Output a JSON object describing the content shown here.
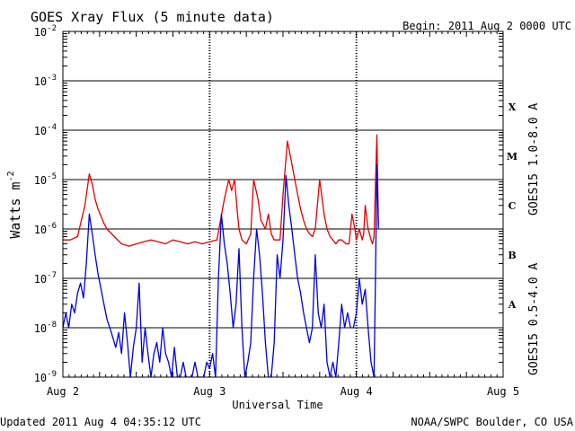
{
  "header": {
    "title": "GOES Xray Flux (5 minute data)",
    "begin": "Begin:  2011 Aug 2 0000 UTC"
  },
  "footer": {
    "updated": "Updated 2011 Aug  4 04:35:12 UTC",
    "source": "NOAA/SWPC Boulder, CO USA"
  },
  "chart_data": {
    "type": "line",
    "title": "GOES Xray Flux (5 minute data)",
    "xlabel": "Universal Time",
    "ylabel": "Watts m",
    "ylabel_exponent": "-2",
    "y_scale": "log",
    "ylim": [
      1e-09,
      0.01
    ],
    "xlim": [
      0,
      3
    ],
    "x_unit": "days since 2011 Aug 2 0000 UTC",
    "x_ticks": [
      {
        "value": 0,
        "label": "Aug 2"
      },
      {
        "value": 1,
        "label": "Aug 3"
      },
      {
        "value": 2,
        "label": "Aug 4"
      },
      {
        "value": 3,
        "label": "Aug 5"
      }
    ],
    "y_ticks": [
      {
        "value": 0.01,
        "label": "10",
        "exp": "-2"
      },
      {
        "value": 0.001,
        "label": "10",
        "exp": "-3"
      },
      {
        "value": 0.0001,
        "label": "10",
        "exp": "-4"
      },
      {
        "value": 1e-05,
        "label": "10",
        "exp": "-5"
      },
      {
        "value": 1e-06,
        "label": "10",
        "exp": "-6"
      },
      {
        "value": 1e-07,
        "label": "10",
        "exp": "-7"
      },
      {
        "value": 1e-08,
        "label": "10",
        "exp": "-8"
      },
      {
        "value": 1e-09,
        "label": "10",
        "exp": "-9"
      }
    ],
    "flare_classes": [
      {
        "label": "X",
        "value": 0.0003
      },
      {
        "label": "M",
        "value": 3e-05
      },
      {
        "label": "C",
        "value": 3e-06
      },
      {
        "label": "B",
        "value": 3e-07
      },
      {
        "label": "A",
        "value": 3e-08
      }
    ],
    "grid": true,
    "series": [
      {
        "name": "GOES15 1.0-8.0 A",
        "color": "#e00000",
        "x": [
          0.0,
          0.05,
          0.1,
          0.15,
          0.18,
          0.2,
          0.22,
          0.24,
          0.26,
          0.28,
          0.3,
          0.35,
          0.4,
          0.45,
          0.5,
          0.55,
          0.6,
          0.65,
          0.7,
          0.75,
          0.8,
          0.85,
          0.9,
          0.95,
          1.0,
          1.05,
          1.1,
          1.13,
          1.15,
          1.17,
          1.19,
          1.2,
          1.22,
          1.25,
          1.28,
          1.3,
          1.33,
          1.35,
          1.38,
          1.4,
          1.42,
          1.44,
          1.46,
          1.48,
          1.5,
          1.53,
          1.55,
          1.58,
          1.6,
          1.62,
          1.64,
          1.66,
          1.68,
          1.7,
          1.72,
          1.75,
          1.78,
          1.8,
          1.82,
          1.84,
          1.86,
          1.88,
          1.9,
          1.93,
          1.95,
          1.97,
          1.99,
          2.0,
          2.02,
          2.04,
          2.05,
          2.06,
          2.08,
          2.1,
          2.11,
          2.12,
          2.13,
          2.14,
          2.15
        ],
        "y": [
          6e-07,
          6e-07,
          7e-07,
          3e-06,
          1.3e-05,
          8e-06,
          4e-06,
          2.5e-06,
          1.8e-06,
          1.3e-06,
          1e-06,
          7e-07,
          5e-07,
          4.5e-07,
          5e-07,
          5.5e-07,
          6e-07,
          5.5e-07,
          5e-07,
          6e-07,
          5.5e-07,
          5e-07,
          5.5e-07,
          5e-07,
          5.5e-07,
          6e-07,
          4e-06,
          1e-05,
          6e-06,
          1e-05,
          2e-06,
          1e-06,
          6e-07,
          5e-07,
          8e-07,
          1e-05,
          4e-06,
          1.5e-06,
          1e-06,
          2e-06,
          8e-07,
          6e-07,
          6e-07,
          6e-07,
          5e-06,
          6e-05,
          3e-05,
          1e-05,
          5e-06,
          2.5e-06,
          1.5e-06,
          1e-06,
          8e-07,
          7e-07,
          1e-06,
          1e-05,
          2e-06,
          1e-06,
          7e-07,
          6e-07,
          5e-07,
          6e-07,
          6e-07,
          5e-07,
          5e-07,
          2e-06,
          1e-06,
          6e-07,
          1e-06,
          6e-07,
          8e-07,
          3e-06,
          1e-06,
          6e-07,
          5e-07,
          7e-07,
          8e-06,
          8e-05,
          1.2e-06
        ]
      },
      {
        "name": "GOES15 0.5-4.0 A",
        "color": "#0000e0",
        "x": [
          0.0,
          0.02,
          0.04,
          0.06,
          0.08,
          0.1,
          0.12,
          0.14,
          0.16,
          0.18,
          0.2,
          0.22,
          0.24,
          0.26,
          0.28,
          0.3,
          0.33,
          0.36,
          0.38,
          0.4,
          0.42,
          0.44,
          0.46,
          0.48,
          0.5,
          0.52,
          0.54,
          0.56,
          0.58,
          0.6,
          0.62,
          0.64,
          0.66,
          0.68,
          0.7,
          0.72,
          0.74,
          0.76,
          0.78,
          0.8,
          0.82,
          0.84,
          0.86,
          0.88,
          0.9,
          0.92,
          0.94,
          0.96,
          0.98,
          1.0,
          1.02,
          1.04,
          1.06,
          1.08,
          1.1,
          1.12,
          1.14,
          1.16,
          1.18,
          1.2,
          1.22,
          1.24,
          1.26,
          1.28,
          1.3,
          1.32,
          1.34,
          1.36,
          1.38,
          1.4,
          1.42,
          1.44,
          1.46,
          1.48,
          1.5,
          1.52,
          1.54,
          1.56,
          1.58,
          1.6,
          1.62,
          1.64,
          1.66,
          1.68,
          1.7,
          1.72,
          1.74,
          1.76,
          1.78,
          1.8,
          1.82,
          1.84,
          1.86,
          1.88,
          1.9,
          1.92,
          1.94,
          1.96,
          1.98,
          2.0,
          2.02,
          2.04,
          2.06,
          2.08,
          2.1,
          2.12,
          2.13,
          2.14,
          2.15
        ],
        "y": [
          1e-08,
          2e-08,
          1e-08,
          3e-08,
          2e-08,
          5e-08,
          8e-08,
          4e-08,
          2e-07,
          2e-06,
          8e-07,
          3e-07,
          1.2e-07,
          6e-08,
          3e-08,
          1.5e-08,
          8e-09,
          4e-09,
          8e-09,
          3e-09,
          2e-08,
          5e-09,
          1e-09,
          4e-09,
          1e-08,
          8e-08,
          2e-09,
          1e-08,
          3e-09,
          1e-09,
          3e-09,
          5e-09,
          2e-09,
          1e-08,
          3e-09,
          2e-09,
          1e-09,
          4e-09,
          1e-09,
          1e-09,
          2e-09,
          1e-09,
          1e-09,
          1e-09,
          2e-09,
          1e-09,
          1e-09,
          1e-09,
          2e-09,
          1.5e-09,
          3e-09,
          1e-09,
          1e-07,
          2e-06,
          5e-07,
          2e-07,
          5e-08,
          1e-08,
          3e-08,
          4e-07,
          1e-08,
          1e-09,
          2e-09,
          5e-09,
          1e-07,
          1e-06,
          3e-07,
          5e-08,
          5e-09,
          1e-09,
          1e-09,
          5e-09,
          3e-07,
          1e-07,
          6e-07,
          1.2e-05,
          3e-06,
          1e-06,
          3e-07,
          1e-07,
          5e-08,
          2e-08,
          1e-08,
          5e-09,
          1e-08,
          3e-07,
          2e-08,
          1e-08,
          3e-08,
          2e-09,
          1e-09,
          2e-09,
          1e-09,
          5e-09,
          3e-08,
          1e-08,
          2e-08,
          1e-08,
          1e-08,
          2e-08,
          1e-07,
          3e-08,
          6e-08,
          1e-08,
          2e-09,
          1e-09,
          1e-07,
          2e-05,
          1e-06
        ]
      }
    ]
  }
}
